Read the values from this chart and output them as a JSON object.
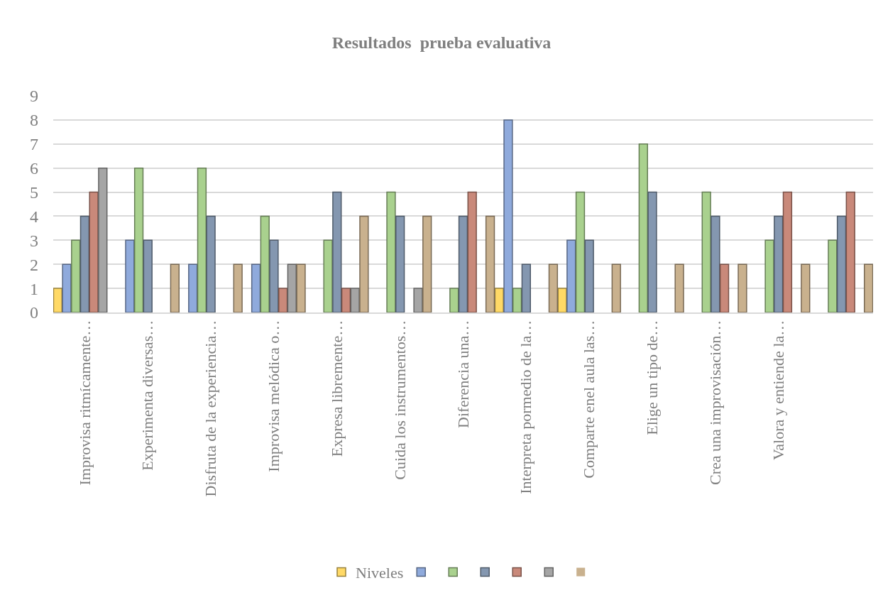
{
  "chart_data": {
    "type": "bar",
    "title": "Resultados  prueba evaluativa",
    "categories": [
      "Improvisa ritmícamente…",
      "Experimenta diversas…",
      "Disfruta de la experiencia…",
      "Improvisa melódica o…",
      "Expresa libremente…",
      "Cuida los instrumentos…",
      "Diferencia una…",
      "Interpreta pormedio de la…",
      "Comparte enel aula las…",
      "Elige un tipo de…",
      "Crea una improvisación…",
      "Valora y entiende la…",
      null
    ],
    "series": [
      {
        "name": "Niveles",
        "color": "#ffd966",
        "values": [
          1,
          0,
          0,
          0,
          0,
          0,
          0,
          1,
          1,
          0,
          0,
          0,
          0
        ]
      },
      {
        "color": "#8faadc",
        "values": [
          2,
          3,
          2,
          2,
          0,
          0,
          0,
          8,
          3,
          0,
          0,
          0,
          0
        ]
      },
      {
        "color": "#a9d18e",
        "values": [
          3,
          6,
          6,
          4,
          3,
          5,
          1,
          1,
          5,
          7,
          5,
          3,
          3
        ]
      },
      {
        "color": "#8497b0",
        "values": [
          4,
          3,
          4,
          3,
          5,
          4,
          4,
          2,
          3,
          5,
          4,
          4,
          4
        ]
      },
      {
        "color": "#c9897a",
        "values": [
          5,
          0,
          0,
          1,
          1,
          0,
          5,
          0,
          0,
          0,
          2,
          5,
          5
        ]
      },
      {
        "color": "#a5a5a5",
        "values": [
          6,
          0,
          0,
          2,
          1,
          1,
          0,
          0,
          0,
          0,
          0,
          0,
          0
        ]
      },
      {
        "color": "#c9b18e",
        "values": [
          0,
          2,
          2,
          2,
          4,
          4,
          4,
          2,
          2,
          2,
          2,
          2,
          2
        ]
      }
    ],
    "ylim": [
      0,
      9
    ],
    "yticks": [
      0,
      1,
      2,
      3,
      4,
      5,
      6,
      7,
      8,
      9
    ],
    "grid": "y",
    "legend": "bottom"
  }
}
